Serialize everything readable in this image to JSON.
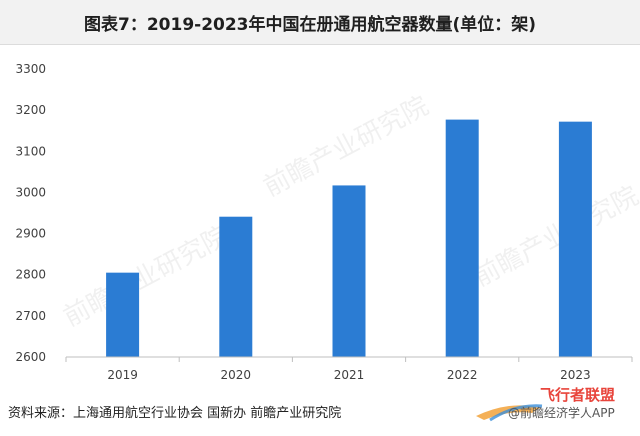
{
  "title": "图表7：2019-2023年中国在册通用航空器数量(单位：架)",
  "source": "资料来源：上海通用航空行业协会 国新办 前瞻产业研究院",
  "watermark": {
    "brand": "前瞻产业研究院",
    "badge": "飞行者联盟",
    "corner": "@前瞻经济学人APP"
  },
  "colors": {
    "bar": "#2b7cd3",
    "axis": "#bfbfbf",
    "text": "#404040"
  },
  "chart_data": {
    "type": "bar",
    "categories": [
      "2019",
      "2020",
      "2021",
      "2022",
      "2023"
    ],
    "values": [
      2805,
      2941,
      3017,
      3177,
      3172
    ],
    "ylim": [
      2600,
      3300
    ],
    "yticks": [
      2600,
      2700,
      2800,
      2900,
      3000,
      3100,
      3200,
      3300
    ],
    "grid": false
  }
}
